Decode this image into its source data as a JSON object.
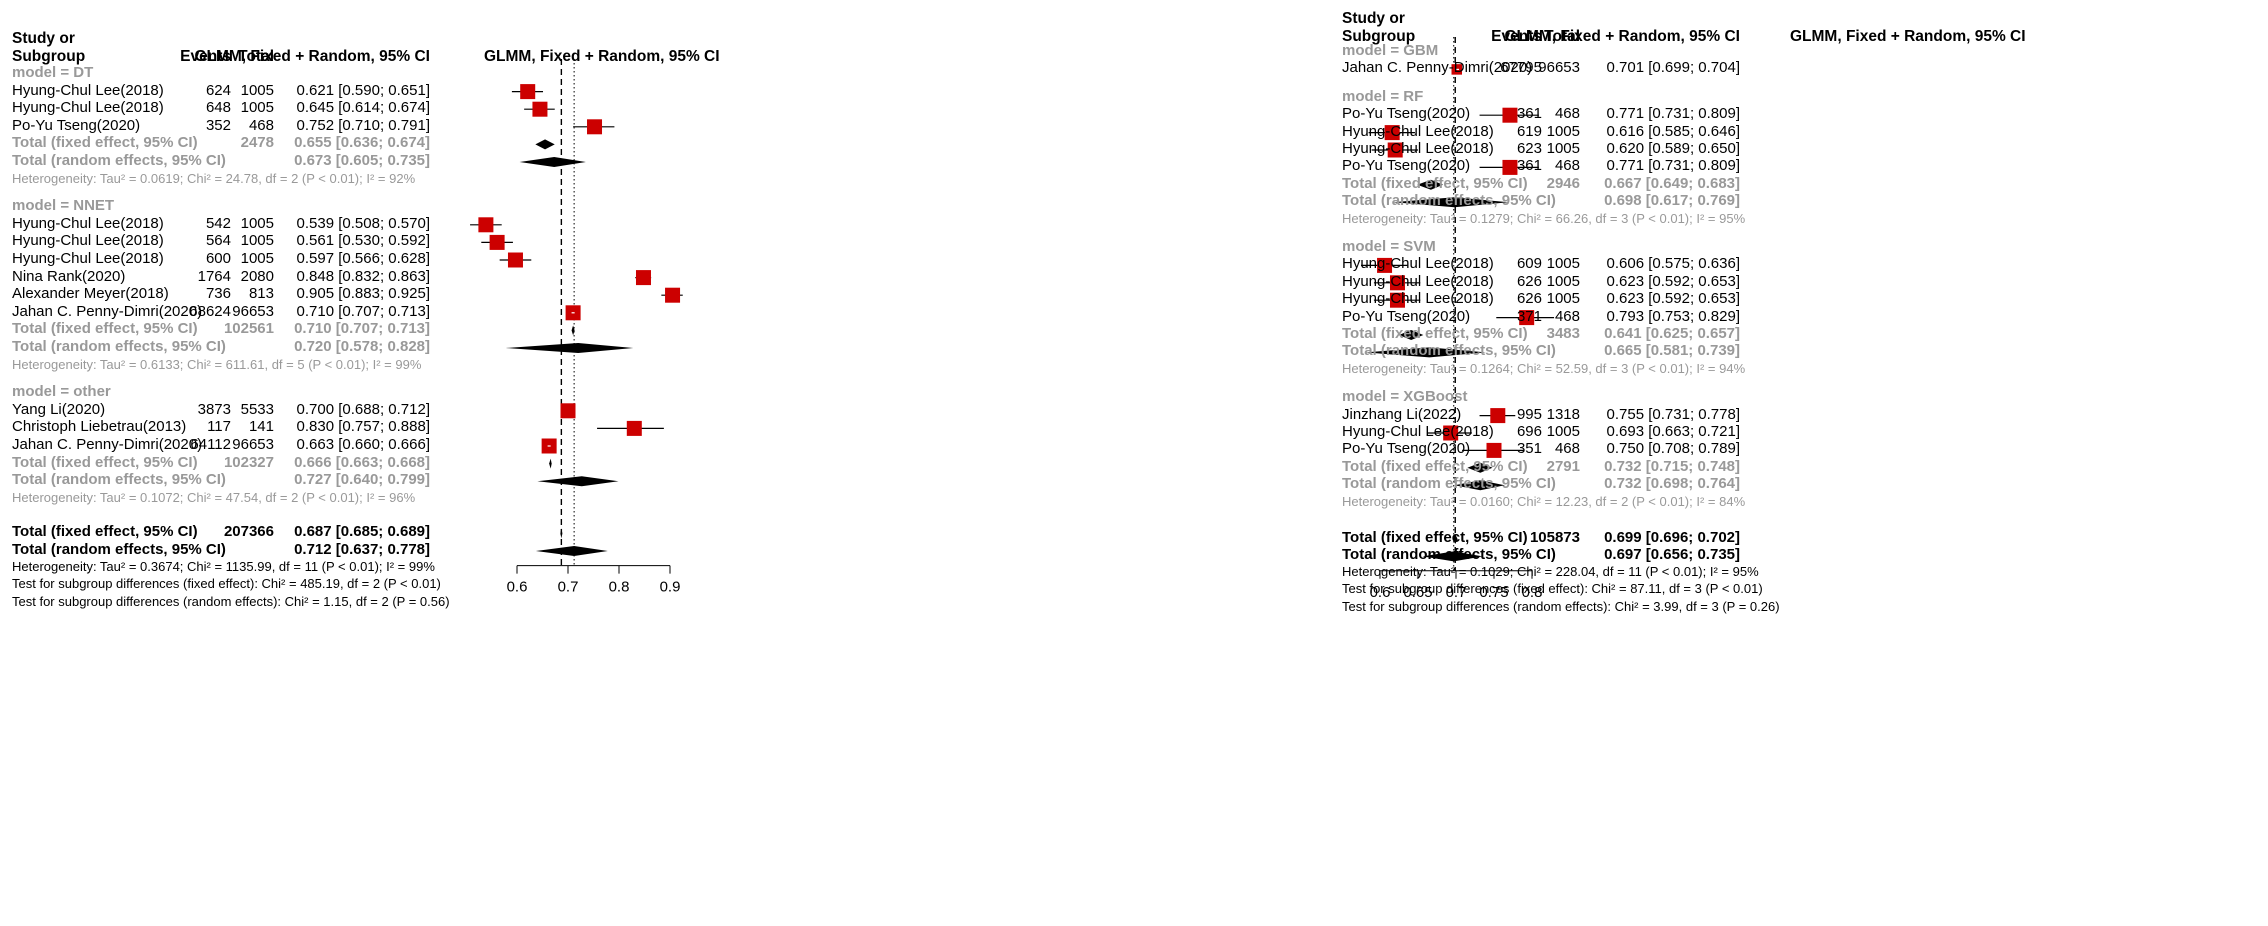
{
  "chart_data": [
    {
      "type": "forest",
      "panel": "left",
      "headers": {
        "study": [
          "Study or",
          "Subgroup"
        ],
        "events": "Events",
        "total": "Total",
        "estimate": "GLMM, Fixed + Random, 95% CI",
        "plot": "GLMM, Fixed + Random, 95% CI"
      },
      "xaxis": {
        "range": [
          0.6,
          0.9
        ],
        "ticks": [
          0.6,
          0.7,
          0.8,
          0.9
        ],
        "tick_labels": [
          "0.6",
          "0.7",
          "0.8",
          "0.9"
        ]
      },
      "fixed_line": 0.687,
      "random_line": 0.712,
      "groups": [
        {
          "label": "model = DT",
          "studies": [
            {
              "study": "Hyung-Chul Lee(2018)",
              "events": "624",
              "total": "1005",
              "ci_text": "0.621 [0.590; 0.651]",
              "est": 0.621,
              "lo": 0.59,
              "hi": 0.651,
              "weight": 1.0
            },
            {
              "study": "Hyung-Chul Lee(2018)",
              "events": "648",
              "total": "1005",
              "ci_text": "0.645 [0.614; 0.674]",
              "est": 0.645,
              "lo": 0.614,
              "hi": 0.674,
              "weight": 1.0
            },
            {
              "study": "Po-Yu Tseng(2020)",
              "events": "352",
              "total": "468",
              "ci_text": "0.752 [0.710; 0.791]",
              "est": 0.752,
              "lo": 0.71,
              "hi": 0.791,
              "weight": 1.0
            }
          ],
          "fixed": {
            "label": "Total (fixed effect, 95% CI)",
            "total": "2478",
            "ci_text": "0.655 [0.636; 0.674]",
            "est": 0.655,
            "lo": 0.636,
            "hi": 0.674
          },
          "random": {
            "label": "Total (random effects, 95% CI)",
            "ci_text": "0.673 [0.605; 0.735]",
            "est": 0.673,
            "lo": 0.605,
            "hi": 0.735
          },
          "heterogeneity": "Heterogeneity: Tau² = 0.0619; Chi² = 24.78, df = 2 (P < 0.01); I² = 92%"
        },
        {
          "label": "model = NNET",
          "studies": [
            {
              "study": "Hyung-Chul Lee(2018)",
              "events": "542",
              "total": "1005",
              "ci_text": "0.539 [0.508; 0.570]",
              "est": 0.539,
              "lo": 0.508,
              "hi": 0.57,
              "weight": 1.0
            },
            {
              "study": "Hyung-Chul Lee(2018)",
              "events": "564",
              "total": "1005",
              "ci_text": "0.561 [0.530; 0.592]",
              "est": 0.561,
              "lo": 0.53,
              "hi": 0.592,
              "weight": 1.0
            },
            {
              "study": "Hyung-Chul Lee(2018)",
              "events": "600",
              "total": "1005",
              "ci_text": "0.597 [0.566; 0.628]",
              "est": 0.597,
              "lo": 0.566,
              "hi": 0.628,
              "weight": 1.0
            },
            {
              "study": "Nina Rank(2020)",
              "events": "1764",
              "total": "2080",
              "ci_text": "0.848 [0.832; 0.863]",
              "est": 0.848,
              "lo": 0.832,
              "hi": 0.863,
              "weight": 1.0
            },
            {
              "study": "Alexander Meyer(2018)",
              "events": "736",
              "total": "813",
              "ci_text": "0.905 [0.883; 0.925]",
              "est": 0.905,
              "lo": 0.883,
              "hi": 0.925,
              "weight": 1.0
            },
            {
              "study": "Jahan C. Penny-Dimri(2020)",
              "events": "68624",
              "total": "96653",
              "ci_text": "0.710 [0.707; 0.713]",
              "est": 0.71,
              "lo": 0.707,
              "hi": 0.713,
              "weight": 1.0
            }
          ],
          "fixed": {
            "label": "Total (fixed effect, 95% CI)",
            "total": "102561",
            "ci_text": "0.710 [0.707; 0.713]",
            "est": 0.71,
            "lo": 0.707,
            "hi": 0.713
          },
          "random": {
            "label": "Total (random effects, 95% CI)",
            "ci_text": "0.720 [0.578; 0.828]",
            "est": 0.72,
            "lo": 0.578,
            "hi": 0.828
          },
          "heterogeneity": "Heterogeneity: Tau² = 0.6133; Chi² = 611.61, df = 5 (P < 0.01); I² = 99%"
        },
        {
          "label": "model = other",
          "studies": [
            {
              "study": "Yang Li(2020)",
              "events": "3873",
              "total": "5533",
              "ci_text": "0.700 [0.688; 0.712]",
              "est": 0.7,
              "lo": 0.688,
              "hi": 0.712,
              "weight": 1.0
            },
            {
              "study": "Christoph Liebetrau(2013)",
              "events": "117",
              "total": "141",
              "ci_text": "0.830 [0.757; 0.888]",
              "est": 0.83,
              "lo": 0.757,
              "hi": 0.888,
              "weight": 1.0
            },
            {
              "study": "Jahan C. Penny-Dimri(2020)",
              "events": "64112",
              "total": "96653",
              "ci_text": "0.663 [0.660; 0.666]",
              "est": 0.663,
              "lo": 0.66,
              "hi": 0.666,
              "weight": 1.0
            }
          ],
          "fixed": {
            "label": "Total (fixed effect, 95% CI)",
            "total": "102327",
            "ci_text": "0.666 [0.663; 0.668]",
            "est": 0.666,
            "lo": 0.663,
            "hi": 0.668
          },
          "random": {
            "label": "Total (random effects, 95% CI)",
            "ci_text": "0.727 [0.640; 0.799]",
            "est": 0.727,
            "lo": 0.64,
            "hi": 0.799
          },
          "heterogeneity": "Heterogeneity: Tau² = 0.1072; Chi² = 47.54, df = 2 (P < 0.01); I² = 96%"
        }
      ],
      "overall": {
        "fixed": {
          "label": "Total (fixed effect, 95% CI)",
          "total": "207366",
          "ci_text": "0.687 [0.685; 0.689]",
          "est": 0.687,
          "lo": 0.685,
          "hi": 0.689
        },
        "random": {
          "label": "Total (random effects, 95% CI)",
          "ci_text": "0.712 [0.637; 0.778]",
          "est": 0.712,
          "lo": 0.637,
          "hi": 0.778
        },
        "heterogeneity": "Heterogeneity: Tau² = 0.3674; Chi² = 1135.99, df = 11 (P < 0.01); I² = 99%",
        "test_fixed": "Test for subgroup differences (fixed effect): Chi² = 485.19, df = 2 (P < 0.01)",
        "test_random": "Test for subgroup differences (random effects): Chi² = 1.15, df = 2 (P = 0.56)"
      }
    },
    {
      "type": "forest",
      "panel": "right",
      "headers": {
        "study": [
          "Study or",
          "Subgroup"
        ],
        "events": "Events",
        "total": "Total",
        "estimate": "GLMM, Fixed + Random, 95% CI",
        "plot": "GLMM, Fixed + Random, 95% CI"
      },
      "xaxis": {
        "range": [
          0.6,
          0.8
        ],
        "ticks": [
          0.6,
          0.65,
          0.7,
          0.75,
          0.8
        ],
        "tick_labels": [
          "0.6",
          "0.65",
          "0.7",
          "0.75",
          "0.8"
        ]
      },
      "fixed_line": 0.699,
      "random_line": 0.697,
      "groups": [
        {
          "label": "model = GBM",
          "studies": [
            {
              "study": "Jahan C. Penny-Dimri(2020)",
              "events": "67795",
              "total": "96653",
              "ci_text": "0.701 [0.699; 0.704]",
              "est": 0.701,
              "lo": 0.699,
              "hi": 0.704,
              "weight": 0.7
            }
          ]
        },
        {
          "label": "model = RF",
          "studies": [
            {
              "study": "Po-Yu Tseng(2020)",
              "events": "361",
              "total": "468",
              "ci_text": "0.771 [0.731; 0.809]",
              "est": 0.771,
              "lo": 0.731,
              "hi": 0.809,
              "weight": 1.0
            },
            {
              "study": "Hyung-Chul Lee(2018)",
              "events": "619",
              "total": "1005",
              "ci_text": "0.616 [0.585; 0.646]",
              "est": 0.616,
              "lo": 0.585,
              "hi": 0.646,
              "weight": 1.0
            },
            {
              "study": "Hyung-Chul Lee(2018)",
              "events": "623",
              "total": "1005",
              "ci_text": "0.620 [0.589; 0.650]",
              "est": 0.62,
              "lo": 0.589,
              "hi": 0.65,
              "weight": 1.0
            },
            {
              "study": "Po-Yu Tseng(2020)",
              "events": "361",
              "total": "468",
              "ci_text": "0.771 [0.731; 0.809]",
              "est": 0.771,
              "lo": 0.731,
              "hi": 0.809,
              "weight": 1.0
            }
          ],
          "fixed": {
            "label": "Total (fixed effect, 95% CI)",
            "total": "2946",
            "ci_text": "0.667 [0.649; 0.683]",
            "est": 0.667,
            "lo": 0.649,
            "hi": 0.683
          },
          "random": {
            "label": "Total (random effects, 95% CI)",
            "ci_text": "0.698 [0.617; 0.769]",
            "est": 0.698,
            "lo": 0.617,
            "hi": 0.769
          },
          "heterogeneity": "Heterogeneity: Tau² = 0.1279; Chi² = 66.26, df = 3 (P < 0.01); I² = 95%"
        },
        {
          "label": "model = SVM",
          "studies": [
            {
              "study": "Hyung-Chul Lee(2018)",
              "events": "609",
              "total": "1005",
              "ci_text": "0.606 [0.575; 0.636]",
              "est": 0.606,
              "lo": 0.575,
              "hi": 0.636,
              "weight": 1.0
            },
            {
              "study": "Hyung-Chul Lee(2018)",
              "events": "626",
              "total": "1005",
              "ci_text": "0.623 [0.592; 0.653]",
              "est": 0.623,
              "lo": 0.592,
              "hi": 0.653,
              "weight": 1.0
            },
            {
              "study": "Hyung-Chul Lee(2018)",
              "events": "626",
              "total": "1005",
              "ci_text": "0.623 [0.592; 0.653]",
              "est": 0.623,
              "lo": 0.592,
              "hi": 0.653,
              "weight": 1.0
            },
            {
              "study": "Po-Yu Tseng(2020)",
              "events": "371",
              "total": "468",
              "ci_text": "0.793 [0.753; 0.829]",
              "est": 0.793,
              "lo": 0.753,
              "hi": 0.829,
              "weight": 1.0
            }
          ],
          "fixed": {
            "label": "Total (fixed effect, 95% CI)",
            "total": "3483",
            "ci_text": "0.641 [0.625; 0.657]",
            "est": 0.641,
            "lo": 0.625,
            "hi": 0.657
          },
          "random": {
            "label": "Total (random effects, 95% CI)",
            "ci_text": "0.665 [0.581; 0.739]",
            "est": 0.665,
            "lo": 0.581,
            "hi": 0.739
          },
          "heterogeneity": "Heterogeneity: Tau² = 0.1264; Chi² = 52.59, df = 3 (P < 0.01); I² = 94%"
        },
        {
          "label": "model = XGBoost",
          "studies": [
            {
              "study": "Jinzhang Li(2022)",
              "events": "995",
              "total": "1318",
              "ci_text": "0.755 [0.731; 0.778]",
              "est": 0.755,
              "lo": 0.731,
              "hi": 0.778,
              "weight": 1.0
            },
            {
              "study": "Hyung-Chul Lee(2018)",
              "events": "696",
              "total": "1005",
              "ci_text": "0.693 [0.663; 0.721]",
              "est": 0.693,
              "lo": 0.663,
              "hi": 0.721,
              "weight": 1.0
            },
            {
              "study": "Po-Yu Tseng(2020)",
              "events": "351",
              "total": "468",
              "ci_text": "0.750 [0.708; 0.789]",
              "est": 0.75,
              "lo": 0.708,
              "hi": 0.789,
              "weight": 1.0
            }
          ],
          "fixed": {
            "label": "Total (fixed effect, 95% CI)",
            "total": "2791",
            "ci_text": "0.732 [0.715; 0.748]",
            "est": 0.732,
            "lo": 0.715,
            "hi": 0.748
          },
          "random": {
            "label": "Total (random effects, 95% CI)",
            "ci_text": "0.732 [0.698; 0.764]",
            "est": 0.732,
            "lo": 0.698,
            "hi": 0.764
          },
          "heterogeneity": "Heterogeneity: Tau² = 0.0160; Chi² = 12.23, df = 2 (P < 0.01); I² = 84%"
        }
      ],
      "overall": {
        "fixed": {
          "label": "Total (fixed effect, 95% CI)",
          "total": "105873",
          "ci_text": "0.699 [0.696; 0.702]",
          "est": 0.699,
          "lo": 0.696,
          "hi": 0.702
        },
        "random": {
          "label": "Total (random effects, 95% CI)",
          "ci_text": "0.697 [0.656; 0.735]",
          "est": 0.697,
          "lo": 0.656,
          "hi": 0.735
        },
        "heterogeneity": "Heterogeneity: Tau² = 0.1029; Chi² = 228.04, df = 11 (P < 0.01); I² = 95%",
        "test_fixed": "Test for subgroup differences (fixed effect): Chi² = 87.11, df = 3 (P < 0.01)",
        "test_random": "Test for subgroup differences (random effects): Chi² = 3.99, df = 3 (P = 0.26)"
      }
    }
  ],
  "colors": {
    "box": "#cc0000",
    "gray_text": "#999999",
    "diamond": "#000000"
  }
}
